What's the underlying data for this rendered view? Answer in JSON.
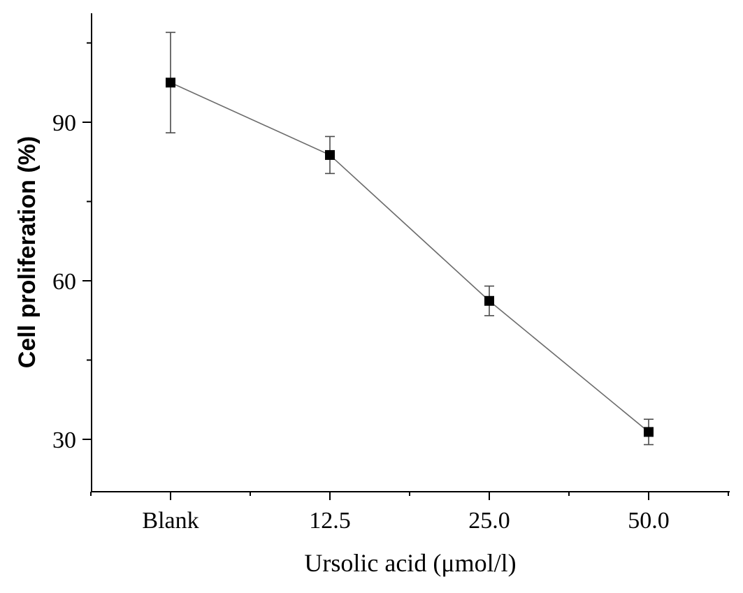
{
  "chart_data": {
    "type": "line",
    "categories": [
      "Blank",
      "12.5",
      "25.0",
      "50.0"
    ],
    "series": [
      {
        "values": [
          97.5,
          83.8,
          56.2,
          31.4
        ],
        "errors": [
          9.5,
          3.5,
          2.8,
          2.4
        ]
      }
    ],
    "xlabel": "Ursolic acid (μmol/l)",
    "ylabel": "Cell proliferation  (%)",
    "ylim": [
      21,
      111
    ],
    "yticks_major": [
      30,
      60,
      90
    ],
    "yticks_minor": [
      45,
      75,
      105
    ],
    "grid": false,
    "colors": {
      "line": "#6b6b6b",
      "marker": "#000000",
      "error_bar": "#4a4a4a"
    }
  }
}
